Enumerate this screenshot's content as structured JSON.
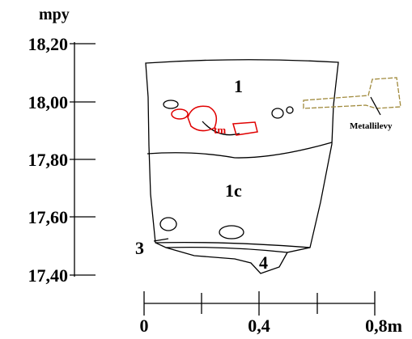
{
  "vertical_scale": {
    "unit": "mpy",
    "labels": [
      "18,20",
      "18,00",
      "17,80",
      "17,60",
      "17,40"
    ]
  },
  "horizontal_scale": {
    "labels": [
      "0",
      "0,4",
      "0,8m"
    ]
  },
  "section": {
    "layers": [
      "1",
      "1c",
      "3",
      "4"
    ],
    "find": "tm",
    "feature": "Metallilevy"
  }
}
